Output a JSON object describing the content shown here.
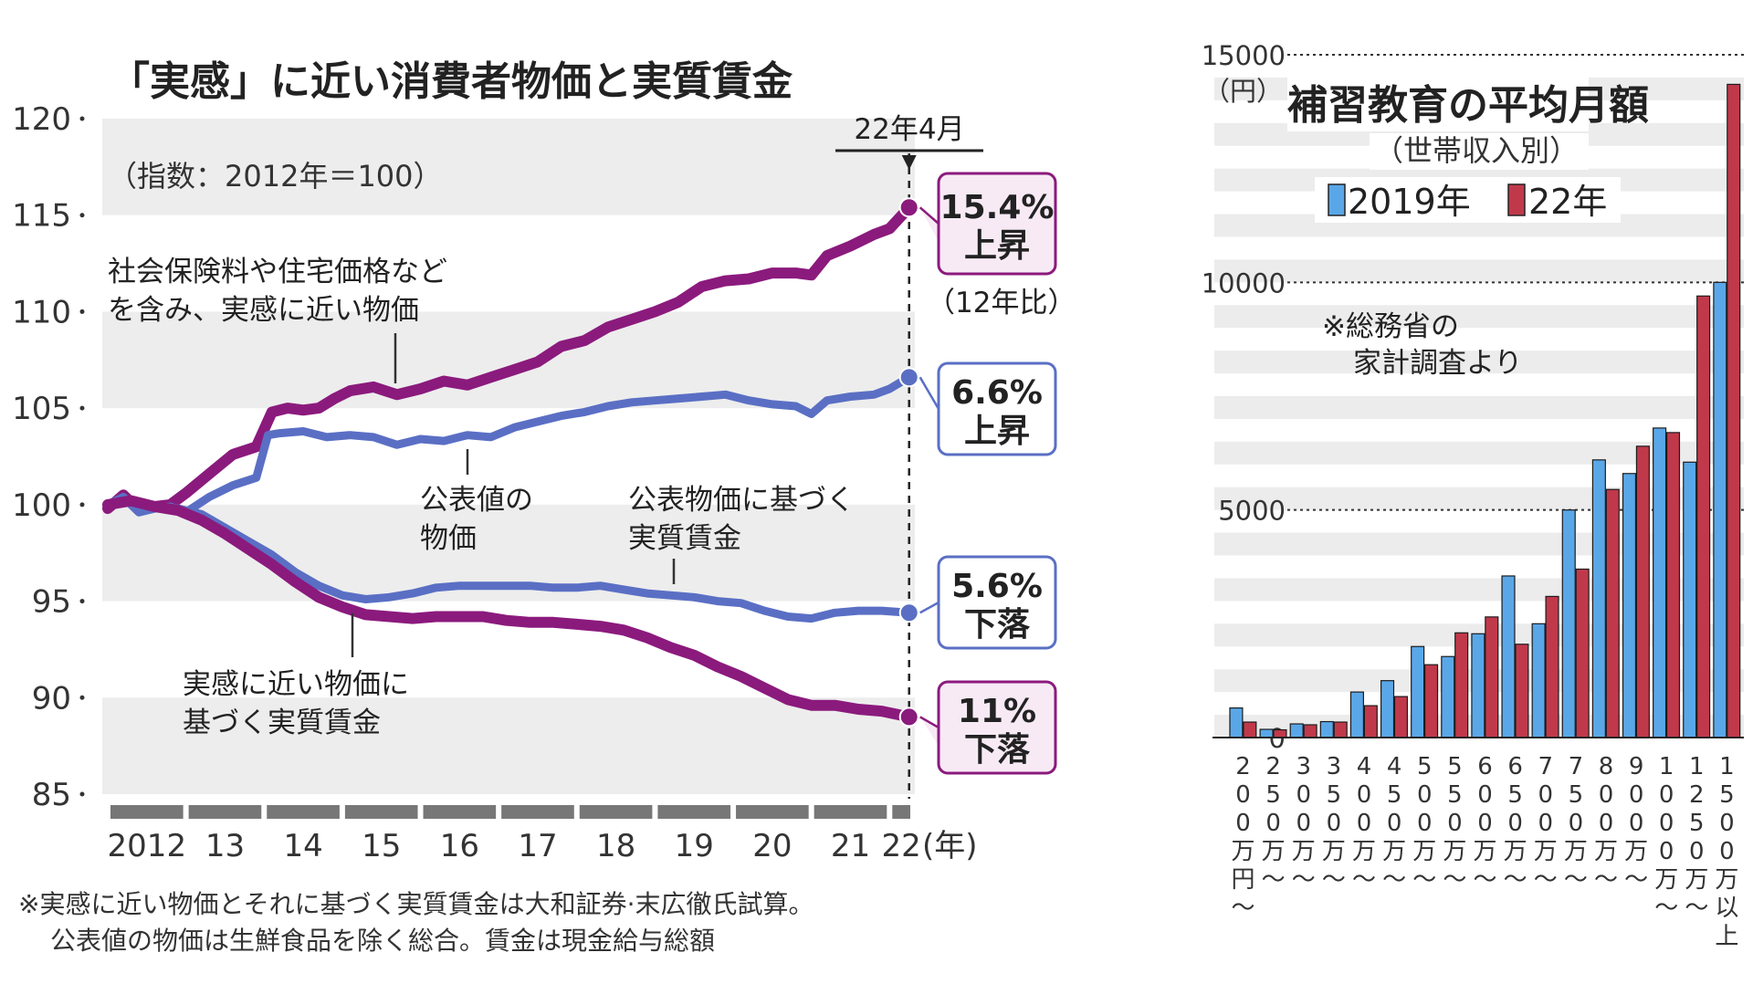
{
  "chart_data": [
    {
      "type": "line",
      "title": "「実感」に近い消費者物価と実質賃金",
      "subtitle": "（指数：2012年＝100）",
      "ylim": [
        85,
        120
      ],
      "yticks": [
        "120",
        "115",
        "110",
        "105",
        "100",
        "95",
        "90",
        "85"
      ],
      "xlim": [
        2012,
        2022.3
      ],
      "xticks": [
        {
          "x": 2012.5,
          "label": "2012"
        },
        {
          "x": 2013.5,
          "label": "13"
        },
        {
          "x": 2014.5,
          "label": "14"
        },
        {
          "x": 2015.5,
          "label": "15"
        },
        {
          "x": 2016.5,
          "label": "16"
        },
        {
          "x": 2017.5,
          "label": "17"
        },
        {
          "x": 2018.5,
          "label": "18"
        },
        {
          "x": 2019.5,
          "label": "19"
        },
        {
          "x": 2020.5,
          "label": "20"
        },
        {
          "x": 2021.5,
          "label": "21"
        },
        {
          "x": 2022.15,
          "label": "22"
        }
      ],
      "year_unit": "(年)",
      "marker_label": "22年4月",
      "marker_x": 2022.25,
      "series": [
        {
          "key": "felt_price",
          "color": "#8b1a7d",
          "width": 12,
          "x": [
            2012.0,
            2012.2,
            2012.4,
            2012.6,
            2012.8,
            2013.0,
            2013.3,
            2013.6,
            2013.9,
            2014.1,
            2014.3,
            2014.5,
            2014.7,
            2014.9,
            2015.1,
            2015.4,
            2015.7,
            2016.0,
            2016.3,
            2016.6,
            2016.9,
            2017.2,
            2017.5,
            2017.8,
            2018.1,
            2018.4,
            2018.7,
            2019.0,
            2019.3,
            2019.6,
            2019.9,
            2020.2,
            2020.5,
            2020.8,
            2021.0,
            2021.2,
            2021.5,
            2021.8,
            2022.0,
            2022.25
          ],
          "y": [
            99.8,
            100.5,
            99.7,
            99.9,
            100.0,
            100.6,
            101.6,
            102.6,
            103.0,
            104.8,
            105.0,
            104.9,
            105.0,
            105.5,
            105.9,
            106.1,
            105.7,
            106.0,
            106.4,
            106.2,
            106.6,
            107.0,
            107.4,
            108.2,
            108.5,
            109.2,
            109.6,
            110.0,
            110.5,
            111.3,
            111.6,
            111.7,
            112.0,
            112.0,
            111.9,
            112.9,
            113.4,
            114.0,
            114.3,
            115.4
          ]
        },
        {
          "key": "official_price",
          "color": "#5a6fc4",
          "width": 9,
          "x": [
            2012.0,
            2012.2,
            2012.4,
            2012.6,
            2012.8,
            2013.0,
            2013.3,
            2013.6,
            2013.9,
            2014.05,
            2014.2,
            2014.5,
            2014.8,
            2015.1,
            2015.4,
            2015.7,
            2016.0,
            2016.3,
            2016.6,
            2016.9,
            2017.2,
            2017.5,
            2017.8,
            2018.1,
            2018.4,
            2018.7,
            2019.0,
            2019.3,
            2019.6,
            2019.9,
            2020.2,
            2020.5,
            2020.8,
            2021.0,
            2021.2,
            2021.5,
            2021.8,
            2022.0,
            2022.25
          ],
          "y": [
            100.0,
            100.4,
            99.6,
            99.8,
            99.9,
            99.6,
            100.4,
            101.0,
            101.4,
            103.6,
            103.7,
            103.8,
            103.5,
            103.6,
            103.5,
            103.1,
            103.4,
            103.3,
            103.6,
            103.5,
            104.0,
            104.3,
            104.6,
            104.8,
            105.1,
            105.3,
            105.4,
            105.5,
            105.6,
            105.7,
            105.4,
            105.2,
            105.1,
            104.7,
            105.4,
            105.6,
            105.7,
            106.0,
            106.6
          ]
        },
        {
          "key": "official_wage",
          "color": "#5a6fc4",
          "width": 9,
          "x": [
            2012.0,
            2012.3,
            2012.6,
            2012.9,
            2013.2,
            2013.5,
            2013.8,
            2014.1,
            2014.4,
            2014.7,
            2015.0,
            2015.3,
            2015.6,
            2015.9,
            2016.2,
            2016.5,
            2016.8,
            2017.1,
            2017.4,
            2017.7,
            2018.0,
            2018.3,
            2018.6,
            2018.9,
            2019.2,
            2019.5,
            2019.8,
            2020.1,
            2020.4,
            2020.7,
            2021.0,
            2021.3,
            2021.6,
            2021.9,
            2022.25
          ],
          "y": [
            100.0,
            100.2,
            99.9,
            99.8,
            99.5,
            98.8,
            98.1,
            97.4,
            96.5,
            95.8,
            95.3,
            95.1,
            95.2,
            95.4,
            95.7,
            95.8,
            95.8,
            95.8,
            95.8,
            95.7,
            95.7,
            95.8,
            95.6,
            95.4,
            95.3,
            95.2,
            95.0,
            94.9,
            94.5,
            94.2,
            94.1,
            94.4,
            94.5,
            94.5,
            94.4
          ]
        },
        {
          "key": "felt_wage",
          "color": "#8b1a7d",
          "width": 12,
          "x": [
            2012.0,
            2012.3,
            2012.6,
            2012.9,
            2013.2,
            2013.5,
            2013.8,
            2014.1,
            2014.4,
            2014.7,
            2015.0,
            2015.3,
            2015.6,
            2015.9,
            2016.2,
            2016.5,
            2016.8,
            2017.1,
            2017.4,
            2017.7,
            2018.0,
            2018.3,
            2018.6,
            2018.9,
            2019.2,
            2019.5,
            2019.8,
            2020.1,
            2020.4,
            2020.7,
            2021.0,
            2021.3,
            2021.6,
            2021.9,
            2022.25
          ],
          "y": [
            100.0,
            100.2,
            99.9,
            99.7,
            99.2,
            98.5,
            97.7,
            96.9,
            96.0,
            95.2,
            94.7,
            94.3,
            94.2,
            94.1,
            94.2,
            94.2,
            94.2,
            94.0,
            93.9,
            93.9,
            93.8,
            93.7,
            93.5,
            93.1,
            92.6,
            92.2,
            91.6,
            91.1,
            90.5,
            89.9,
            89.6,
            89.6,
            89.4,
            89.3,
            89.0
          ]
        }
      ],
      "annotations": {
        "felt_price_label": [
          "社会保険料や住宅価格など",
          "を含み、実感に近い物価"
        ],
        "official_price_label": [
          "公表値の",
          "物価"
        ],
        "official_wage_label": [
          "公表物価に基づく",
          "実質賃金"
        ],
        "felt_wage_label": [
          "実感に近い物価に",
          "基づく実質賃金"
        ]
      },
      "end_boxes": [
        {
          "value": "15.4%",
          "word": "上昇",
          "color": "#8b1a7d",
          "fill": "#f7eaf5"
        },
        {
          "value": "6.6%",
          "word": "上昇",
          "color": "#5a6fc4",
          "fill": "#ffffff"
        },
        {
          "value": "5.6%",
          "word": "下落",
          "color": "#5a6fc4",
          "fill": "#ffffff"
        },
        {
          "value": "11%",
          "word": "下落",
          "color": "#8b1a7d",
          "fill": "#f7eaf5"
        }
      ],
      "comparison_note": "（12年比）",
      "footnote": [
        "※実感に近い物価とそれに基づく実質賃金は大和証券·末広徹氏試算。",
        "公表値の物価は生鮮食品を除く総合。賃金は現金給与総額"
      ]
    },
    {
      "type": "bar",
      "title": "補習教育の平均月額",
      "subtitle": "（世帯収入別）",
      "unit": "（円）",
      "ylim": [
        0,
        15000
      ],
      "yticks": [
        {
          "value": 15000,
          "label": "15000"
        },
        {
          "value": 10000,
          "label": "10000"
        },
        {
          "value": 5000,
          "label": "5000"
        },
        {
          "value": 0,
          "label": "0"
        }
      ],
      "categories": [
        [
          "2",
          "0",
          "0",
          "万",
          "円",
          "〜"
        ],
        [
          "2",
          "5",
          "0",
          "万",
          "〜"
        ],
        [
          "3",
          "0",
          "0",
          "万",
          "〜"
        ],
        [
          "3",
          "5",
          "0",
          "万",
          "〜"
        ],
        [
          "4",
          "0",
          "0",
          "万",
          "〜"
        ],
        [
          "4",
          "5",
          "0",
          "万",
          "〜"
        ],
        [
          "5",
          "0",
          "0",
          "万",
          "〜"
        ],
        [
          "5",
          "5",
          "0",
          "万",
          "〜"
        ],
        [
          "6",
          "0",
          "0",
          "万",
          "〜"
        ],
        [
          "6",
          "5",
          "0",
          "万",
          "〜"
        ],
        [
          "7",
          "0",
          "0",
          "万",
          "〜"
        ],
        [
          "7",
          "5",
          "0",
          "万",
          "〜"
        ],
        [
          "8",
          "0",
          "0",
          "万",
          "〜"
        ],
        [
          "9",
          "0",
          "0",
          "万",
          "〜"
        ],
        [
          "1",
          "0",
          "0",
          "0",
          "万",
          "〜"
        ],
        [
          "1",
          "2",
          "5",
          "0",
          "万",
          "〜"
        ],
        [
          "1",
          "5",
          "0",
          "0",
          "万",
          "以",
          "上"
        ]
      ],
      "series": [
        {
          "name": "2019年",
          "color": "#5aa7e8",
          "values": [
            650,
            180,
            300,
            350,
            1000,
            1250,
            2000,
            1780,
            2280,
            3550,
            2500,
            5000,
            6100,
            5800,
            6800,
            6050,
            10000
          ]
        },
        {
          "name": "22年",
          "color": "#c0394b",
          "values": [
            340,
            170,
            280,
            340,
            700,
            900,
            1600,
            2300,
            2650,
            2050,
            3100,
            3700,
            5450,
            6400,
            6700,
            9700,
            14350
          ]
        }
      ],
      "note": [
        "※総務省の",
        "家計調査より"
      ]
    }
  ]
}
